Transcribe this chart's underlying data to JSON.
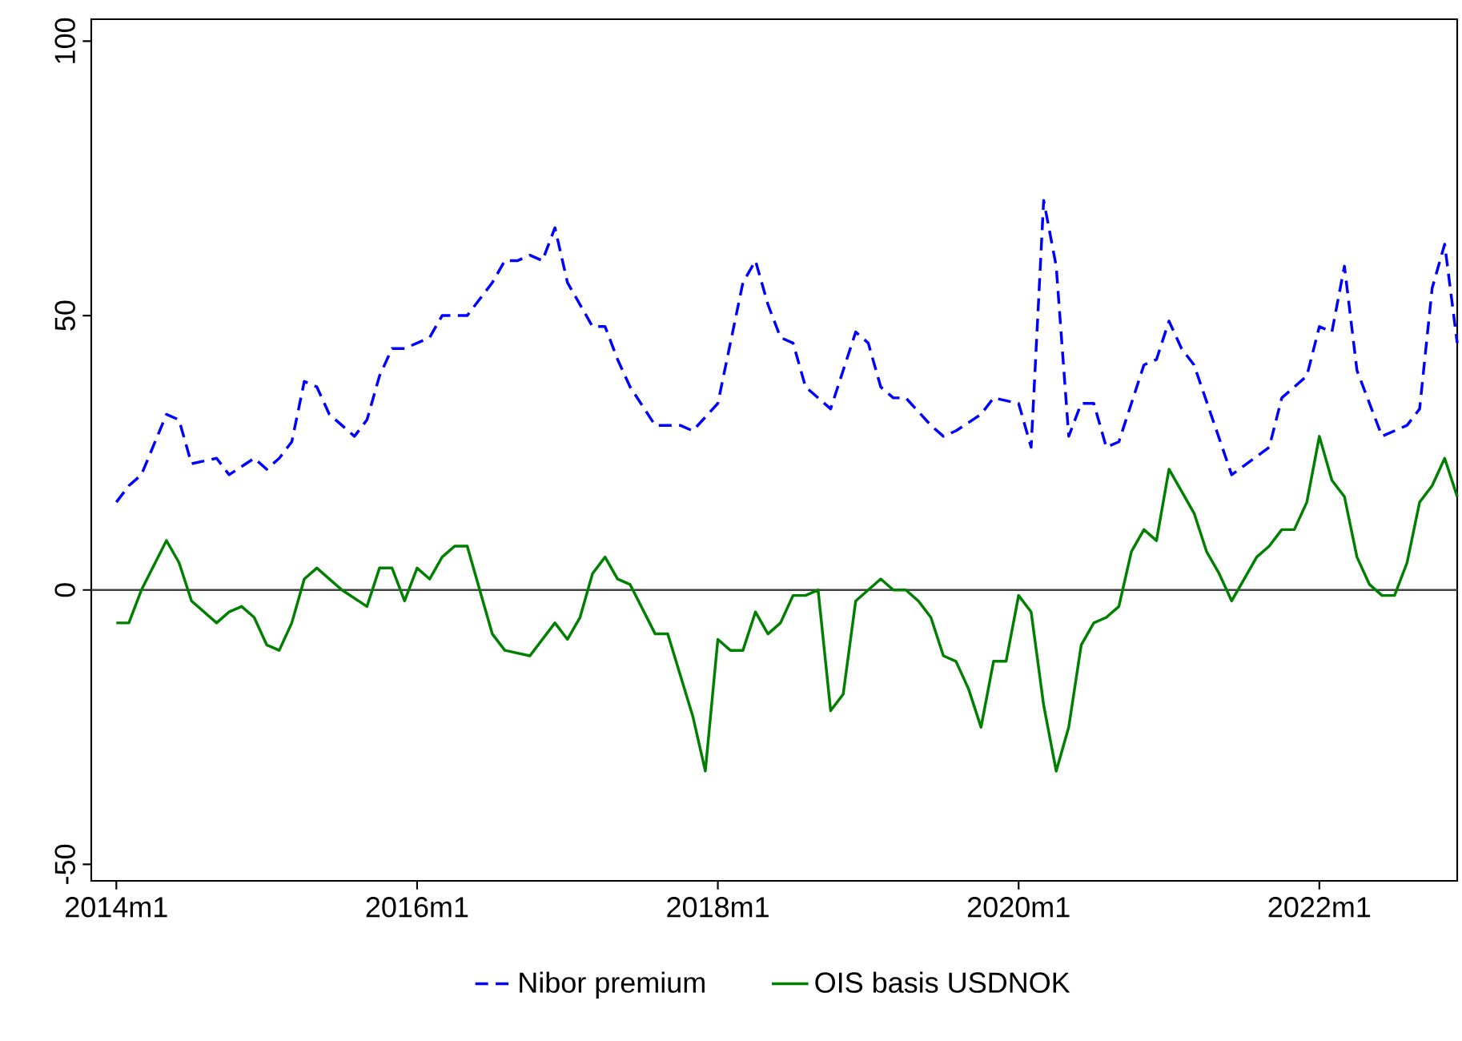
{
  "chart_data": {
    "type": "line",
    "xlim": [
      "2013-11",
      "2022-12"
    ],
    "ylim": [
      -53,
      104
    ],
    "xticks": [
      {
        "value": "2014-01",
        "label": "2014m1"
      },
      {
        "value": "2016-01",
        "label": "2016m1"
      },
      {
        "value": "2018-01",
        "label": "2018m1"
      },
      {
        "value": "2020-01",
        "label": "2020m1"
      },
      {
        "value": "2022-01",
        "label": "2022m1"
      }
    ],
    "yticks": [
      -50,
      0,
      50,
      100
    ],
    "legend": "bottom",
    "ref_lines": [
      {
        "axis": "y",
        "value": 0,
        "color": "#404040"
      }
    ],
    "series": [
      {
        "name": "Nibor premium",
        "color": "#0000ff",
        "line_style": "dashed",
        "x": [
          "2014-01",
          "2014-02",
          "2014-03",
          "2014-05",
          "2014-06",
          "2014-07",
          "2014-09",
          "2014-10",
          "2014-12",
          "2015-01",
          "2015-02",
          "2015-03",
          "2015-04",
          "2015-05",
          "2015-06",
          "2015-08",
          "2015-09",
          "2015-10",
          "2015-11",
          "2015-12",
          "2016-02",
          "2016-03",
          "2016-04",
          "2016-05",
          "2016-06",
          "2016-07",
          "2016-08",
          "2016-09",
          "2016-10",
          "2016-11",
          "2016-12",
          "2017-01",
          "2017-03",
          "2017-04",
          "2017-05",
          "2017-06",
          "2017-08",
          "2017-10",
          "2017-11",
          "2018-01",
          "2018-03",
          "2018-04",
          "2018-05",
          "2018-06",
          "2018-07",
          "2018-08",
          "2018-10",
          "2018-12",
          "2019-01",
          "2019-02",
          "2019-03",
          "2019-04",
          "2019-06",
          "2019-07",
          "2019-08",
          "2019-10",
          "2019-11",
          "2020-01",
          "2020-02",
          "2020-03",
          "2020-04",
          "2020-05",
          "2020-06",
          "2020-07",
          "2020-08",
          "2020-09",
          "2020-11",
          "2020-12",
          "2021-01",
          "2021-02",
          "2021-03",
          "2021-06",
          "2021-09",
          "2021-10",
          "2021-12",
          "2022-01",
          "2022-02",
          "2022-03",
          "2022-04",
          "2022-06",
          "2022-08",
          "2022-09",
          "2022-10",
          "2022-11",
          "2022-12"
        ],
        "values": [
          16,
          19,
          21,
          32,
          31,
          23,
          24,
          21,
          24,
          22,
          24,
          27,
          38,
          37,
          32,
          28,
          31,
          39,
          44,
          44,
          46,
          50,
          50,
          50,
          53,
          56,
          60,
          60,
          61,
          60,
          66,
          56,
          48,
          48,
          42,
          37,
          30,
          30,
          29,
          34,
          56,
          60,
          52,
          46,
          45,
          37,
          33,
          47,
          45,
          37,
          35,
          35,
          30,
          28,
          29,
          32,
          35,
          34,
          26,
          71,
          59,
          28,
          34,
          34,
          26,
          27,
          41,
          42,
          49,
          44,
          41,
          21,
          26,
          35,
          39,
          48,
          47,
          59,
          40,
          28,
          30,
          33,
          55,
          63,
          45
        ]
      },
      {
        "name": "OIS basis USDNOK",
        "color": "#008000",
        "line_style": "solid",
        "x": [
          "2014-01",
          "2014-02",
          "2014-03",
          "2014-05",
          "2014-06",
          "2014-07",
          "2014-09",
          "2014-10",
          "2014-11",
          "2014-12",
          "2015-01",
          "2015-02",
          "2015-03",
          "2015-04",
          "2015-05",
          "2015-07",
          "2015-09",
          "2015-10",
          "2015-11",
          "2015-12",
          "2016-01",
          "2016-02",
          "2016-03",
          "2016-04",
          "2016-05",
          "2016-06",
          "2016-07",
          "2016-08",
          "2016-10",
          "2016-12",
          "2017-01",
          "2017-02",
          "2017-03",
          "2017-04",
          "2017-05",
          "2017-06",
          "2017-08",
          "2017-09",
          "2017-11",
          "2017-12",
          "2018-01",
          "2018-02",
          "2018-03",
          "2018-04",
          "2018-05",
          "2018-06",
          "2018-07",
          "2018-08",
          "2018-09",
          "2018-10",
          "2018-11",
          "2018-12",
          "2019-01",
          "2019-02",
          "2019-03",
          "2019-04",
          "2019-05",
          "2019-06",
          "2019-07",
          "2019-08",
          "2019-09",
          "2019-10",
          "2019-11",
          "2019-12",
          "2020-01",
          "2020-02",
          "2020-03",
          "2020-04",
          "2020-05",
          "2020-06",
          "2020-07",
          "2020-08",
          "2020-09",
          "2020-10",
          "2020-11",
          "2020-12",
          "2021-01",
          "2021-02",
          "2021-03",
          "2021-04",
          "2021-05",
          "2021-06",
          "2021-07",
          "2021-08",
          "2021-09",
          "2021-10",
          "2021-11",
          "2021-12",
          "2022-01",
          "2022-02",
          "2022-03",
          "2022-04",
          "2022-05",
          "2022-06",
          "2022-07",
          "2022-08",
          "2022-09",
          "2022-10",
          "2022-11",
          "2022-12"
        ],
        "values": [
          -6,
          -6,
          0,
          9,
          5,
          -2,
          -6,
          -4,
          -3,
          -5,
          -10,
          -11,
          -6,
          2,
          4,
          0,
          -3,
          4,
          4,
          -2,
          4,
          2,
          6,
          8,
          8,
          0,
          -8,
          -11,
          -12,
          -6,
          -9,
          -5,
          3,
          6,
          2,
          1,
          -8,
          -8,
          -23,
          -33,
          -9,
          -11,
          -11,
          -4,
          -8,
          -6,
          -1,
          -1,
          0,
          -22,
          -19,
          -2,
          0,
          2,
          0,
          0,
          -2,
          -5,
          -12,
          -13,
          -18,
          -25,
          -13,
          -13,
          -1,
          -4,
          -21,
          -33,
          -25,
          -10,
          -6,
          -5,
          -3,
          7,
          11,
          9,
          22,
          18,
          14,
          7,
          3,
          -2,
          2,
          6,
          8,
          11,
          11,
          16,
          28,
          20,
          17,
          6,
          1,
          -1,
          -1,
          5,
          16,
          19,
          24,
          17
        ]
      }
    ]
  }
}
